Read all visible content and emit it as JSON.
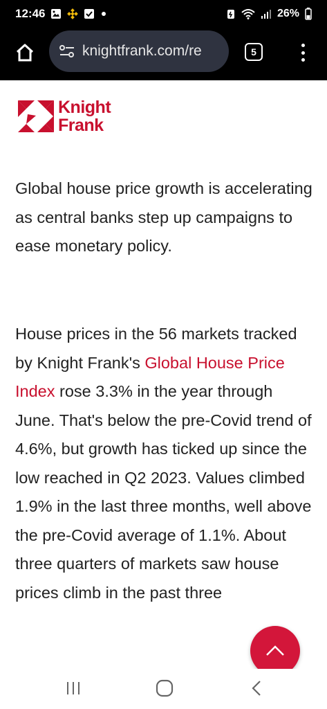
{
  "status_bar": {
    "time": "12:46",
    "battery_percent": "26%",
    "icons": [
      "gallery-icon",
      "binance-icon",
      "checkbox-icon",
      "notification-dot-icon",
      "battery-saver-icon",
      "wifi-icon",
      "signal-icon",
      "battery-icon"
    ]
  },
  "browser": {
    "url": "knightfrank.com/re",
    "tab_count": "5",
    "icons": [
      "home-icon",
      "site-settings-icon",
      "overflow-menu-icon"
    ]
  },
  "page": {
    "logo": {
      "line1": "Knight",
      "line2": "Frank",
      "color": "#c8102e"
    },
    "intro": "Global house price growth is accelerating as central banks step up campaigns to ease monetary policy.",
    "body_before_link": "House prices in the 56 markets tracked by Knight Frank's ",
    "body_link": "Global House Price Index",
    "body_after_link": " rose 3.3% in the year through June. That's below the pre-Covid trend of 4.6%, but growth has ticked up since the low reached in Q2 2023. Values climbed 1.9% in the last three months, well above the pre-Covid average of 1.1%. About three quarters of markets saw house prices climb in the past three",
    "accent_color": "#c8102e"
  },
  "scroll_top_button": {
    "icon": "chevron-up-icon",
    "color": "#d3163a"
  },
  "nav_bar": {
    "icons": [
      "recent-apps-icon",
      "home-circle-icon",
      "back-icon"
    ]
  }
}
